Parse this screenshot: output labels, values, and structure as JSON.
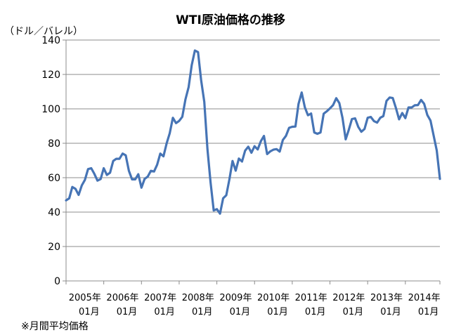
{
  "chart_data": {
    "type": "line",
    "title": "WTI原油価格の推移",
    "ylabel": "（ドル／バレル）",
    "note": "※月間平均価格",
    "ylim": [
      0,
      140
    ],
    "yticks": [
      0,
      20,
      40,
      60,
      80,
      100,
      120,
      140
    ],
    "grid": "horizontal",
    "xtick_labels": [
      {
        "year": "2005年",
        "month": "01月"
      },
      {
        "year": "2006年",
        "month": "01月"
      },
      {
        "year": "2007年",
        "month": "01月"
      },
      {
        "year": "2008年",
        "month": "01月"
      },
      {
        "year": "2009年",
        "month": "01月"
      },
      {
        "year": "2010年",
        "month": "01月"
      },
      {
        "year": "2011年",
        "month": "01月"
      },
      {
        "year": "2012年",
        "month": "01月"
      },
      {
        "year": "2013年",
        "month": "01月"
      },
      {
        "year": "2014年",
        "month": "01月"
      }
    ],
    "series": [
      {
        "color": "#4674b5",
        "x_start": "2005-01",
        "frequency": "monthly",
        "values": [
          46.8,
          48.0,
          54.6,
          53.5,
          50.0,
          55.5,
          58.7,
          65.0,
          65.5,
          62.3,
          58.3,
          59.2,
          65.5,
          61.6,
          62.9,
          69.7,
          71.0,
          71.0,
          74.0,
          73.0,
          64.0,
          59.0,
          59.0,
          62.0,
          54.2,
          59.3,
          60.6,
          64.0,
          63.6,
          67.5,
          74.0,
          72.4,
          79.9,
          85.8,
          94.8,
          91.7,
          93.0,
          95.4,
          105.5,
          112.6,
          125.4,
          133.9,
          133.0,
          116.7,
          104.1,
          76.6,
          57.4,
          41.0,
          41.7,
          39.1,
          48.0,
          49.8,
          59.2,
          69.7,
          64.1,
          71.1,
          69.4,
          75.7,
          78.0,
          74.5,
          78.3,
          76.4,
          81.2,
          84.3,
          73.7,
          75.3,
          76.3,
          76.6,
          75.2,
          81.9,
          84.3,
          89.0,
          89.6,
          89.7,
          102.9,
          109.5,
          100.9,
          96.3,
          97.3,
          86.3,
          85.5,
          86.3,
          97.2,
          98.6,
          100.3,
          102.2,
          106.2,
          103.3,
          94.7,
          82.3,
          87.9,
          94.1,
          94.5,
          89.5,
          86.7,
          88.3,
          94.8,
          95.3,
          92.9,
          92.0,
          94.8,
          95.8,
          104.6,
          106.6,
          106.3,
          100.5,
          93.9,
          97.6,
          94.6,
          100.8,
          100.8,
          102.1,
          102.2,
          105.2,
          102.9,
          96.4,
          93.2,
          84.4,
          75.8,
          59.3
        ]
      }
    ]
  }
}
